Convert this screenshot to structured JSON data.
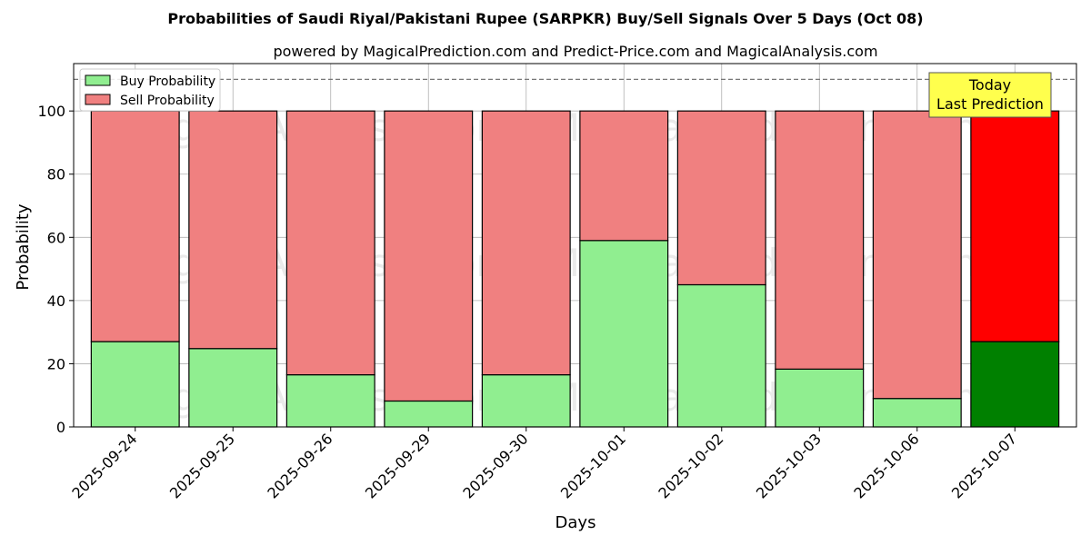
{
  "chart_data": {
    "type": "bar",
    "stacked": true,
    "title": "Probabilities of Saudi Riyal/Pakistani Rupee (SARPKR) Buy/Sell Signals Over 5 Days (Oct 08)",
    "subtitle": "powered by MagicalPrediction.com and Predict-Price.com and MagicalAnalysis.com",
    "xlabel": "Days",
    "ylabel": "Probability",
    "ylim": [
      0,
      115
    ],
    "yticks": [
      0,
      20,
      40,
      60,
      80,
      100
    ],
    "reference_line": 110,
    "grid": true,
    "legend_position": "top-left",
    "categories": [
      "2025-09-24",
      "2025-09-25",
      "2025-09-26",
      "2025-09-29",
      "2025-09-30",
      "2025-10-01",
      "2025-10-02",
      "2025-10-03",
      "2025-10-06",
      "2025-10-07"
    ],
    "series": [
      {
        "name": "Buy Probability",
        "color": "#90ee90",
        "highlight_color": "#008000",
        "values": [
          27,
          24.8,
          16.5,
          8.2,
          16.5,
          59,
          45,
          18.3,
          9,
          27
        ]
      },
      {
        "name": "Sell Probability",
        "color": "#f08080",
        "highlight_color": "#ff0000",
        "values": [
          73,
          75.2,
          83.5,
          91.8,
          83.5,
          41,
          55,
          81.7,
          91,
          73
        ]
      }
    ],
    "highlight_index": 9,
    "annotation": {
      "line1": "Today",
      "line2": "Last Prediction",
      "color": "#ffff4d"
    },
    "watermarks": [
      "MagicalAnalysis.com",
      "MagicalPrediction.com"
    ]
  }
}
